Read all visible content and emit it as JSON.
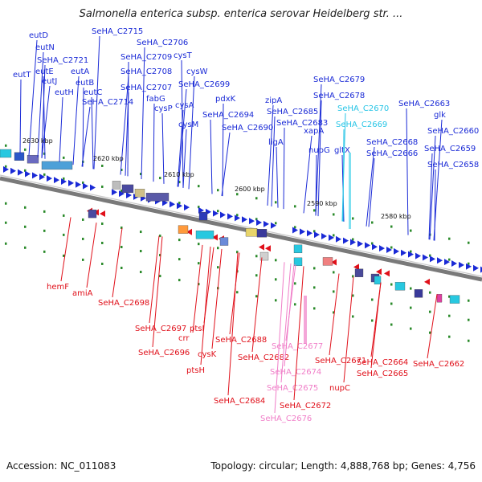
{
  "header": {
    "title": "Salmonella enterica subsp. enterica serovar Heidelberg str. ..."
  },
  "footer": {
    "accession": "Accession: NC_011083",
    "summary": "Topology: circular; Length: 4,888,768 bp; Genes: 4,756"
  },
  "colors": {
    "forward": "#1a2ad6",
    "reverse": "#e0101a",
    "label_cyan": "#27c5e6",
    "label_pink": "#f07ec8",
    "backbone": "#7a7a7a",
    "dots": "#2a8a2a"
  },
  "ticks": [
    "2630 kbp",
    "2620 kbp",
    "2610 kbp",
    "2600 kbp",
    "2590 kbp",
    "2580 kbp"
  ],
  "forward_labels": [
    "eutD",
    "eutN",
    "SeHA_C2721",
    "eutT",
    "eutE",
    "eutJ",
    "eutA",
    "eutH",
    "eutB",
    "eutC",
    "SeHA_C2714",
    "SeHA_C2715",
    "SeHA_C2706",
    "SeHA_C2709",
    "cysT",
    "SeHA_C2708",
    "cysW",
    "SeHA_C2707",
    "fabG",
    "cysP",
    "SeHA_C2699",
    "cysA",
    "cysM",
    "pdxK",
    "SeHA_C2694",
    "SeHA_C2690",
    "zipA",
    "SeHA_C2685",
    "SeHA_C2683",
    "ligA",
    "xapA",
    "SeHA_C2679",
    "SeHA_C2678",
    "nupG",
    "gltX",
    "SeHA_C2668",
    "SeHA_C2666",
    "SeHA_C2670",
    "SeHA_C2669",
    "SeHA_C2663",
    "glk",
    "SeHA_C2660",
    "SeHA_C2659",
    "SeHA_C2658"
  ],
  "reverse_labels": [
    "hemF",
    "amiA",
    "SeHA_C2698",
    "SeHA_C2697",
    "ptsI",
    "crr",
    "SeHA_C2696",
    "SeHA_C2688",
    "cysK",
    "ptsH",
    "SeHA_C2682",
    "SeHA_C2684",
    "SeHA_C2677",
    "SeHA_C2674",
    "SeHA_C2671",
    "SeHA_C2675",
    "SeHA_C2672",
    "SeHA_C2676",
    "SeHA_C2664",
    "SeHA_C2665",
    "nupC",
    "SeHA_C2662"
  ]
}
